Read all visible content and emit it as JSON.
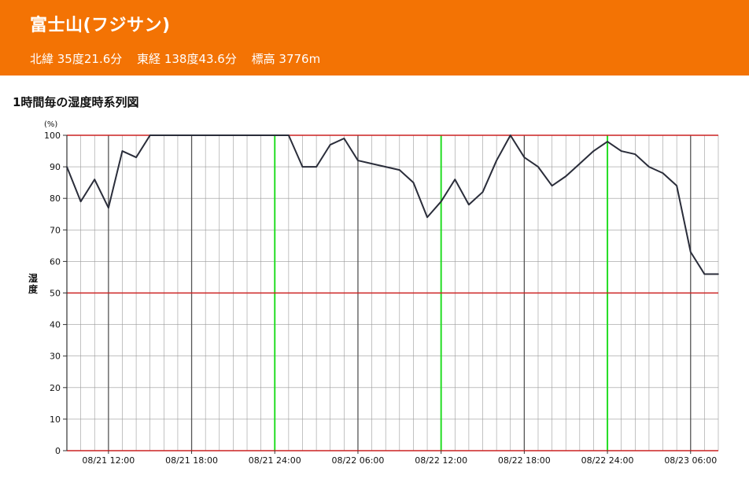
{
  "station": {
    "name": "富士山(フジサン)",
    "latitude": "北緯 35度21.6分",
    "longitude": "東経 138度43.6分",
    "elevation": "標高 3776m"
  },
  "section_title": "1時間毎の湿度時系列図",
  "colors": {
    "header_bg": "#f37304",
    "line": "#2a2d3a",
    "day_boundary": "#22dd22",
    "reference_line": "#cc2222",
    "grid": "#8a8a8a"
  },
  "chart_data": {
    "type": "line",
    "title": "",
    "xlabel": "",
    "ylabel": "湿度",
    "yunit": "(%)",
    "ylim": [
      0,
      100
    ],
    "ytick_step": 10,
    "yticks": [
      "0",
      "10",
      "20",
      "30",
      "40",
      "50",
      "60",
      "70",
      "80",
      "90",
      "100"
    ],
    "grid": true,
    "reference_lines_y": [
      0,
      50,
      100
    ],
    "x_start": "08/21 09:00",
    "x_end": "08/23 08:00",
    "x_step": "1 hour",
    "day_boundaries": [
      "08/21 24:00",
      "08/22 12:00",
      "08/22 24:00"
    ],
    "major_ticks": [
      "08/21 12:00",
      "08/21 18:00",
      "08/21 24:00",
      "08/22 06:00",
      "08/22 12:00",
      "08/22 18:00",
      "08/22 24:00",
      "08/23 06:00"
    ],
    "x_labels": [
      {
        "hour": 3,
        "label": "08/21 12:00"
      },
      {
        "hour": 9,
        "label": "08/21 18:00"
      },
      {
        "hour": 15,
        "label": "08/21 24:00"
      },
      {
        "hour": 21,
        "label": "08/22 06:00"
      },
      {
        "hour": 27,
        "label": "08/22 12:00"
      },
      {
        "hour": 33,
        "label": "08/22 18:00"
      },
      {
        "hour": 39,
        "label": "08/22 24:00"
      },
      {
        "hour": 45,
        "label": "08/23 06:00"
      }
    ],
    "series": [
      {
        "values": [
          90,
          79,
          86,
          77,
          95,
          93,
          100,
          100,
          100,
          100,
          100,
          100,
          100,
          100,
          100,
          100,
          100,
          90,
          90,
          97,
          99,
          92,
          91,
          90,
          89,
          85,
          74,
          79,
          86,
          78,
          82,
          92,
          100,
          93,
          90,
          84,
          87,
          91,
          95,
          98,
          95,
          94,
          90,
          88,
          84,
          63,
          56,
          56
        ]
      }
    ]
  }
}
